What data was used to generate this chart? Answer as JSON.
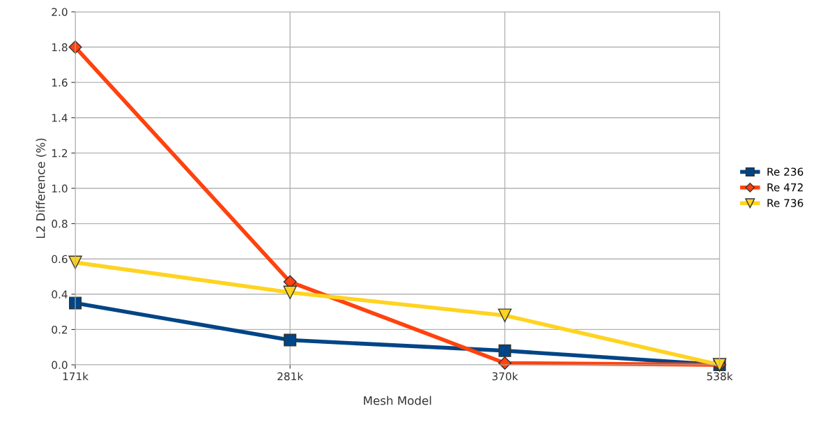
{
  "chart_data": {
    "type": "line",
    "xlabel": "Mesh Model",
    "ylabel": "L2 Difference (%)",
    "categories": [
      "171k",
      "281k",
      "370k",
      "538k"
    ],
    "series": [
      {
        "name": "Re 236",
        "color": "#004586",
        "marker": "square",
        "values": [
          0.35,
          0.14,
          0.08,
          0.0
        ]
      },
      {
        "name": "Re 472",
        "color": "#ff420e",
        "marker": "diamond",
        "values": [
          1.8,
          0.47,
          0.01,
          0.0
        ]
      },
      {
        "name": "Re 736",
        "color": "#ffd320",
        "marker": "triangle",
        "values": [
          0.58,
          0.41,
          0.28,
          0.0
        ]
      }
    ],
    "ylim": [
      0,
      2.0
    ],
    "yticks": [
      {
        "value": 0,
        "label": "0.0"
      },
      {
        "value": 0.2,
        "label": "0.2"
      },
      {
        "value": 0.4,
        "label": "0.4"
      },
      {
        "value": 0.6,
        "label": "0.6"
      },
      {
        "value": 0.8,
        "label": "0.8"
      },
      {
        "value": 1.0,
        "label": "1.0"
      },
      {
        "value": 1.2,
        "label": "1.2"
      },
      {
        "value": 1.4,
        "label": "1.4"
      },
      {
        "value": 1.6,
        "label": "1.6"
      },
      {
        "value": 1.8,
        "label": "1.8"
      },
      {
        "value": 2.0,
        "label": "2.0"
      }
    ],
    "grid": true,
    "legend": "right",
    "line_style": "solid"
  }
}
